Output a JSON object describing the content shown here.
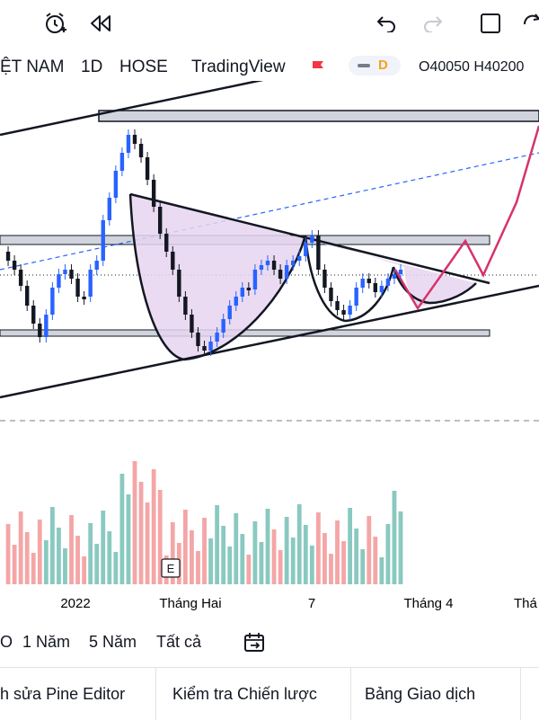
{
  "toolbar": {
    "icons": [
      "alert-clock-icon",
      "replay-icon",
      "undo-icon",
      "redo-icon",
      "fullscreen-icon",
      "sync-icon"
    ]
  },
  "header": {
    "symbol": "ỆT NAM",
    "timeframe": "1D",
    "exchange": "HOSE",
    "source": "TradingView",
    "indicator_letter": "D",
    "ohlc_open": "O40050",
    "ohlc_high": "H40200"
  },
  "chart_data": {
    "type": "candlestick",
    "x_tick_labels": [
      "2022",
      "Tháng Hai",
      "7",
      "Tháng 4",
      "Thá"
    ],
    "event_marker": "E",
    "colors": {
      "up": "#2962ff",
      "down": "#131722",
      "vol_up": "#89c9c0",
      "vol_down": "#f4a6a6",
      "pattern_fill": "#e6d5f0",
      "projection": "#d6336c",
      "trendline": "#131722"
    }
  },
  "timeframes": [
    "O",
    "1 Năm",
    "5 Năm",
    "Tất cả"
  ],
  "bottom_bar": {
    "pine_editor": "h sửa Pine Editor",
    "strategy_tester": "Kiểm tra Chiến lược",
    "trading_panel": "Bảng Giao dịch"
  }
}
